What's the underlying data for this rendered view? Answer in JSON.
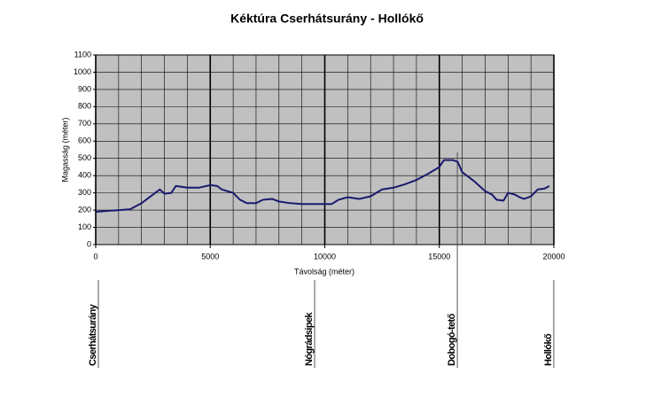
{
  "chart_data": {
    "type": "line",
    "title": "Kéktúra  Cserhátsurány - Hollókő",
    "x_label": "Távolság (méter)",
    "y_label": "Magasság (méter)",
    "x": [
      0,
      500,
      1000,
      1500,
      2000,
      2500,
      2800,
      3000,
      3300,
      3500,
      4000,
      4500,
      5000,
      5300,
      5500,
      6000,
      6300,
      6600,
      7000,
      7300,
      7700,
      8000,
      8500,
      9000,
      9500,
      10000,
      10300,
      10600,
      11000,
      11500,
      12000,
      12500,
      13000,
      13500,
      14000,
      14500,
      15000,
      15200,
      15600,
      15800,
      16000,
      16500,
      17000,
      17300,
      17500,
      17800,
      18000,
      18300,
      18500,
      18700,
      19000,
      19300,
      19600,
      19800
    ],
    "series": [
      {
        "color": "#1a1a6e",
        "values": [
          190,
          195,
          200,
          205,
          240,
          290,
          320,
          295,
          300,
          340,
          330,
          330,
          345,
          340,
          320,
          300,
          260,
          240,
          240,
          260,
          265,
          250,
          240,
          235,
          235,
          235,
          235,
          260,
          275,
          265,
          280,
          320,
          330,
          350,
          375,
          410,
          450,
          490,
          490,
          480,
          420,
          370,
          310,
          290,
          260,
          255,
          300,
          290,
          275,
          265,
          280,
          320,
          325,
          340
        ]
      }
    ],
    "xlim": [
      0,
      20000
    ],
    "xticks": [
      0,
      5000,
      10000,
      15000,
      20000
    ],
    "ylim": [
      0,
      1100
    ],
    "yticks": [
      0,
      100,
      200,
      300,
      400,
      500,
      600,
      700,
      800,
      900,
      1000,
      1100
    ],
    "grid": true,
    "plot_color": "#c0c0c0",
    "waypoints": [
      {
        "label": "Cserhátsurány",
        "x": 0
      },
      {
        "label": "Nógrádsipek",
        "x": 9440
      },
      {
        "label": "Dobogó-tető",
        "x": 15670
      },
      {
        "label": "Hollókő",
        "x": 19880
      }
    ]
  }
}
